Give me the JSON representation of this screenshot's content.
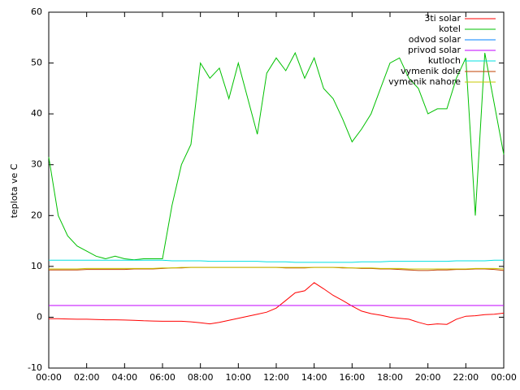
{
  "chart_data": {
    "type": "line",
    "ylabel": "teplota ve C",
    "x": [
      0,
      0.5,
      1,
      1.5,
      2,
      2.5,
      3,
      3.5,
      4,
      4.5,
      5,
      5.5,
      6,
      6.5,
      7,
      7.5,
      8,
      8.5,
      9,
      9.5,
      10,
      10.5,
      11,
      11.5,
      12,
      12.5,
      13,
      13.5,
      14,
      14.5,
      15,
      15.5,
      16,
      16.5,
      17,
      17.5,
      18,
      18.5,
      19,
      19.5,
      20,
      20.5,
      21,
      21.5,
      22,
      22.5,
      23,
      23.5,
      24
    ],
    "xlim": [
      0,
      24
    ],
    "xticks": [
      {
        "value": 0,
        "label": "00:00"
      },
      {
        "value": 2,
        "label": "02:00"
      },
      {
        "value": 4,
        "label": "04:00"
      },
      {
        "value": 6,
        "label": "06:00"
      },
      {
        "value": 8,
        "label": "08:00"
      },
      {
        "value": 10,
        "label": "10:00"
      },
      {
        "value": 12,
        "label": "12:00"
      },
      {
        "value": 14,
        "label": "14:00"
      },
      {
        "value": 16,
        "label": "16:00"
      },
      {
        "value": 18,
        "label": "18:00"
      },
      {
        "value": 20,
        "label": "20:00"
      },
      {
        "value": 22,
        "label": "22:00"
      },
      {
        "value": 24,
        "label": "00:00"
      }
    ],
    "ylim": [
      -10,
      60
    ],
    "yticks": [
      -10,
      0,
      10,
      20,
      30,
      40,
      50,
      60
    ],
    "legend": "top-right",
    "series": [
      {
        "name": "3ti solar",
        "color": "#ff0000",
        "values": [
          -0.3,
          -0.3,
          -0.35,
          -0.4,
          -0.4,
          -0.45,
          -0.5,
          -0.5,
          -0.55,
          -0.6,
          -0.7,
          -0.75,
          -0.8,
          -0.8,
          -0.8,
          -0.9,
          -1.1,
          -1.3,
          -1,
          -0.6,
          -0.2,
          0.2,
          0.6,
          1,
          1.8,
          3.3,
          4.8,
          5.2,
          6.8,
          5.6,
          4.3,
          3.3,
          2.2,
          1.2,
          0.7,
          0.4,
          0,
          -0.2,
          -0.4,
          -1,
          -1.5,
          -1.3,
          -1.4,
          -0.4,
          0.2,
          0.3,
          0.5,
          0.6,
          0.8
        ]
      },
      {
        "name": "kotel",
        "color": "#00c000",
        "values": [
          31.5,
          20,
          16,
          14,
          13,
          12,
          11.5,
          12,
          11.5,
          11.3,
          11.5,
          11.5,
          11.5,
          22,
          30,
          34,
          50,
          47,
          49,
          43,
          50,
          43,
          36,
          48,
          51,
          48.5,
          52,
          47,
          51,
          45,
          43,
          39,
          34.5,
          37,
          40,
          45,
          50,
          51,
          47,
          45,
          40,
          41,
          41,
          47,
          51,
          20,
          52,
          42,
          32
        ]
      },
      {
        "name": "odvod solar",
        "color": "#0080ff",
        "values": [
          2.3,
          2.3,
          2.3,
          2.3,
          2.3,
          2.3,
          2.3,
          2.3,
          2.3,
          2.3,
          2.3,
          2.3,
          2.3,
          2.3,
          2.3,
          2.3,
          2.3,
          2.3,
          2.3,
          2.3,
          2.3,
          2.3,
          2.3,
          2.3,
          2.3,
          2.3,
          2.3,
          2.3,
          2.3,
          2.3,
          2.3,
          2.3,
          2.3,
          2.3,
          2.3,
          2.3,
          2.3,
          2.3,
          2.3,
          2.3,
          2.3,
          2.3,
          2.3,
          2.3,
          2.3,
          2.3,
          2.3,
          2.3,
          2.3
        ]
      },
      {
        "name": "privod solar",
        "color": "#c000ff",
        "values": [
          2.3,
          2.3,
          2.3,
          2.3,
          2.3,
          2.3,
          2.3,
          2.3,
          2.3,
          2.3,
          2.3,
          2.3,
          2.3,
          2.3,
          2.3,
          2.3,
          2.3,
          2.3,
          2.3,
          2.3,
          2.3,
          2.3,
          2.3,
          2.3,
          2.3,
          2.3,
          2.3,
          2.3,
          2.3,
          2.3,
          2.3,
          2.3,
          2.3,
          2.3,
          2.3,
          2.3,
          2.3,
          2.3,
          2.3,
          2.3,
          2.3,
          2.3,
          2.3,
          2.3,
          2.3,
          2.3,
          2.3,
          2.3,
          2.3
        ]
      },
      {
        "name": "kutloch",
        "color": "#00e0e0",
        "values": [
          11.2,
          11.2,
          11.2,
          11.2,
          11.2,
          11.2,
          11.2,
          11.2,
          11.2,
          11.2,
          11.2,
          11.2,
          11.2,
          11.1,
          11.1,
          11.1,
          11.1,
          11,
          11,
          11,
          11,
          11,
          11,
          10.9,
          10.9,
          10.9,
          10.8,
          10.8,
          10.8,
          10.8,
          10.8,
          10.8,
          10.8,
          10.9,
          10.9,
          10.9,
          11,
          11,
          11,
          11,
          11,
          11,
          11,
          11.1,
          11.1,
          11.1,
          11.1,
          11.2,
          11.2
        ]
      },
      {
        "name": "vymenik dole",
        "color": "#c04000",
        "values": [
          9.3,
          9.3,
          9.3,
          9.3,
          9.4,
          9.4,
          9.4,
          9.4,
          9.4,
          9.5,
          9.5,
          9.5,
          9.6,
          9.7,
          9.7,
          9.8,
          9.8,
          9.8,
          9.8,
          9.8,
          9.8,
          9.8,
          9.8,
          9.8,
          9.8,
          9.7,
          9.7,
          9.7,
          9.8,
          9.8,
          9.8,
          9.7,
          9.7,
          9.6,
          9.6,
          9.5,
          9.5,
          9.4,
          9.3,
          9.2,
          9.2,
          9.3,
          9.3,
          9.4,
          9.4,
          9.5,
          9.5,
          9.4,
          9.2
        ]
      },
      {
        "name": "vymenik nahore",
        "color": "#c8c800",
        "values": [
          9.5,
          9.5,
          9.5,
          9.5,
          9.6,
          9.6,
          9.6,
          9.6,
          9.6,
          9.6,
          9.6,
          9.6,
          9.7,
          9.7,
          9.8,
          9.8,
          9.8,
          9.8,
          9.8,
          9.8,
          9.8,
          9.8,
          9.8,
          9.8,
          9.8,
          9.8,
          9.8,
          9.8,
          9.8,
          9.8,
          9.8,
          9.8,
          9.7,
          9.7,
          9.7,
          9.6,
          9.6,
          9.6,
          9.5,
          9.5,
          9.5,
          9.5,
          9.5,
          9.5,
          9.5,
          9.6,
          9.6,
          9.6,
          9.5
        ]
      }
    ]
  }
}
